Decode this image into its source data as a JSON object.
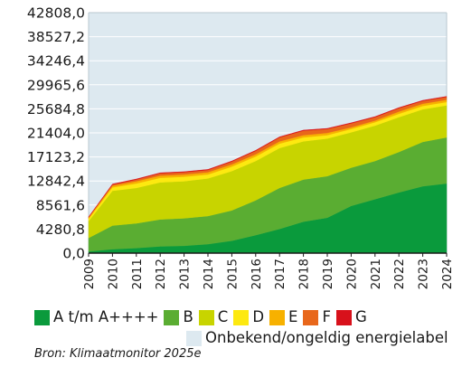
{
  "chart_data": {
    "type": "area",
    "stacked": true,
    "x": [
      "2009",
      "2010",
      "2011",
      "2012",
      "2013",
      "2014",
      "2015",
      "2016",
      "2017",
      "2018",
      "2019",
      "2020",
      "2021",
      "2022",
      "2023",
      "2024"
    ],
    "ylim": [
      0,
      42808.0
    ],
    "y_ticks": [
      "0,0",
      "4280,8",
      "8561,6",
      "12842,4",
      "17123,2",
      "21404,0",
      "25684,8",
      "29965,6",
      "34246,4",
      "38527,2",
      "42808,0"
    ],
    "grid": true,
    "legend_position": "bottom",
    "series": [
      {
        "name": "A t/m A++++",
        "color": "#0a9a3c",
        "values": [
          300,
          700,
          900,
          1200,
          1300,
          1600,
          2200,
          3200,
          4300,
          5600,
          6300,
          8400,
          9600,
          10800,
          11900,
          12400
        ]
      },
      {
        "name": "B",
        "color": "#5aad32",
        "values": [
          2400,
          4200,
          4400,
          4800,
          4900,
          5000,
          5400,
          6200,
          7300,
          7500,
          7400,
          6800,
          6800,
          7200,
          7900,
          8200
        ]
      },
      {
        "name": "C",
        "color": "#c8d400",
        "values": [
          3000,
          6200,
          6300,
          6600,
          6600,
          6700,
          7000,
          7000,
          7100,
          6800,
          6700,
          6300,
          6300,
          6200,
          5800,
          5700
        ]
      },
      {
        "name": "D",
        "color": "#fde910",
        "values": [
          400,
          600,
          800,
          800,
          800,
          700,
          800,
          800,
          800,
          700,
          600,
          600,
          600,
          600,
          600,
          600
        ]
      },
      {
        "name": "E",
        "color": "#f7b100",
        "values": [
          200,
          300,
          400,
          400,
          400,
          400,
          400,
          400,
          400,
          400,
          400,
          300,
          300,
          400,
          400,
          400
        ]
      },
      {
        "name": "F",
        "color": "#e8671b",
        "values": [
          100,
          200,
          300,
          400,
          400,
          400,
          500,
          600,
          700,
          800,
          700,
          700,
          600,
          600,
          500,
          500
        ]
      },
      {
        "name": "G",
        "color": "#d8111b",
        "values": [
          50,
          100,
          100,
          100,
          100,
          100,
          100,
          100,
          100,
          100,
          100,
          100,
          100,
          100,
          100,
          100
        ]
      }
    ],
    "background_series": {
      "name": "Onbekend/ongeldig energielabel",
      "color": "#dde9f0"
    }
  },
  "source": "Bron: Klimaatmonitor 2025e"
}
